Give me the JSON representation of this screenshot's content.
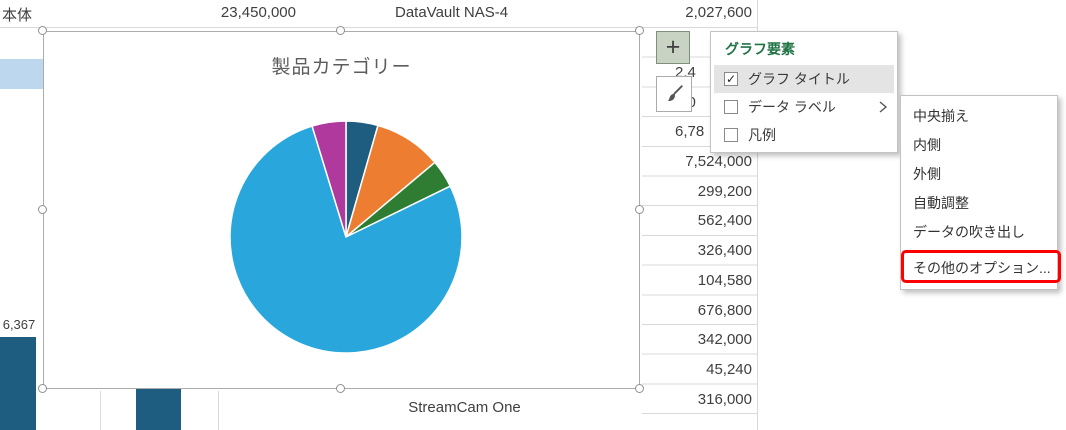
{
  "sheet": {
    "top_row": {
      "cell_a": "本体",
      "cell_b": "23,450,000",
      "cell_c": "DataVault NAS-4",
      "cell_d": "2,027,600"
    },
    "right_column_rows": [
      "2,4",
      "2,0",
      "6,78",
      "7,524,000",
      "299,200",
      "562,400",
      "326,400",
      "104,580",
      "676,800",
      "342,000",
      "45,240",
      "316,000"
    ],
    "bar_data_label": "6,367",
    "bottom_category_label": "StreamCam One",
    "selection_fill": "#BDD7EE"
  },
  "chart_data": [
    {
      "type": "pie",
      "title": "製品カテゴリー",
      "legend": "none",
      "data_labels": "none",
      "slices": [
        {
          "color": "#1E5C80",
          "percent": 4.4,
          "start_angle": 0,
          "end_angle": 16
        },
        {
          "color": "#ED7D31",
          "percent": 9.4,
          "start_angle": 16,
          "end_angle": 50
        },
        {
          "color": "#2E7D32",
          "percent": 3.9,
          "start_angle": 50,
          "end_angle": 64
        },
        {
          "color": "#29A7DC",
          "percent": 77.6,
          "start_angle": 64,
          "end_angle": 343
        },
        {
          "color": "#B0399E",
          "percent": 4.7,
          "start_angle": 343,
          "end_angle": 360
        }
      ]
    },
    {
      "type": "bar",
      "partially_visible": true,
      "bar_color": "#1E5C80",
      "visible_data_labels": [
        "6,367"
      ],
      "visible_category_labels": [
        "StreamCam One"
      ]
    }
  ],
  "chart_elements_flyout": {
    "title": "グラフ要素",
    "items": [
      {
        "label": "グラフ タイトル",
        "checked": true,
        "glyph": "✓"
      },
      {
        "label": "データ ラベル",
        "checked": false,
        "glyph": ""
      },
      {
        "label": "凡例",
        "checked": false,
        "glyph": ""
      }
    ]
  },
  "data_labels_submenu": {
    "items": [
      "中央揃え",
      "内側",
      "外側",
      "自動調整",
      "データの吹き出し",
      "その他のオプション..."
    ],
    "annotated_item": "その他のオプション...",
    "annotation_color": "#FF0000"
  },
  "side_buttons": {
    "chart_elements_glyph": "+"
  },
  "colors": {
    "grid": "#D9D9D9",
    "text": "#3F3F3F",
    "chart_title_gray": "#5C5C5C",
    "menu_green": "#217346",
    "highlight_row": "#E4E4E4",
    "annotation_red": "#FF0000"
  }
}
